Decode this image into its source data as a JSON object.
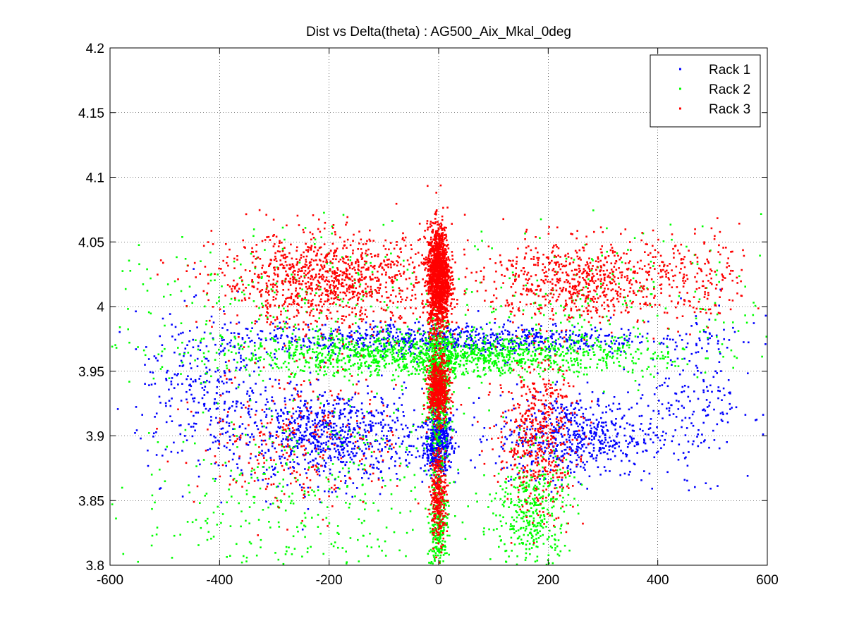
{
  "chart_data": {
    "type": "scatter",
    "title": "Dist vs Delta(theta) : AG500_Aix_Mkal_0deg",
    "xlabel": "",
    "ylabel": "",
    "xlim": [
      -600,
      600
    ],
    "ylim": [
      3.8,
      4.2
    ],
    "x_ticks": [
      -600,
      -400,
      -200,
      0,
      200,
      400,
      600
    ],
    "x_tick_labels": [
      "-600",
      "-400",
      "-200",
      "0",
      "200",
      "400",
      "600"
    ],
    "y_ticks": [
      3.8,
      3.85,
      3.9,
      3.95,
      4.0,
      4.05,
      4.1,
      4.15,
      4.2
    ],
    "y_tick_labels": [
      "3.8",
      "3.85",
      "3.9",
      "3.95",
      "4",
      "4.05",
      "4.1",
      "4.15",
      "4.2"
    ],
    "grid": true,
    "grid_style": "dotted",
    "legend_position": "top-right",
    "series": [
      {
        "name": "Rack 1",
        "color": "#0000ff",
        "marker": "dot",
        "clusters": [
          {
            "x_center": 0,
            "x_spread": 22,
            "y_center": 3.895,
            "y_spread": 0.012,
            "count": 500
          },
          {
            "x_center": -200,
            "x_spread": 140,
            "y_center": 3.9,
            "y_spread": 0.018,
            "count": 800
          },
          {
            "x_center": 250,
            "x_spread": 120,
            "y_center": 3.9,
            "y_spread": 0.016,
            "count": 600
          },
          {
            "x_center": 0,
            "x_spread": 330,
            "y_center": 3.975,
            "y_spread": 0.006,
            "count": 800
          },
          {
            "x_center": -420,
            "x_spread": 110,
            "y_center": 3.93,
            "y_spread": 0.03,
            "count": 300
          },
          {
            "x_center": 470,
            "x_spread": 90,
            "y_center": 3.93,
            "y_spread": 0.03,
            "count": 200
          }
        ]
      },
      {
        "name": "Rack 2",
        "color": "#00ff00",
        "marker": "dot",
        "clusters": [
          {
            "x_center": 0,
            "x_spread": 18,
            "y_center": 3.94,
            "y_spread": 0.025,
            "count": 600
          },
          {
            "x_center": 0,
            "x_spread": 14,
            "y_center": 3.83,
            "y_spread": 0.025,
            "count": 300
          },
          {
            "x_center": 0,
            "x_spread": 330,
            "y_center": 3.962,
            "y_spread": 0.008,
            "count": 1400
          },
          {
            "x_center": 170,
            "x_spread": 55,
            "y_center": 3.84,
            "y_spread": 0.025,
            "count": 400
          },
          {
            "x_center": -250,
            "x_spread": 250,
            "y_center": 3.85,
            "y_spread": 0.04,
            "count": 400
          },
          {
            "x_center": 300,
            "x_spread": 250,
            "y_center": 4.0,
            "y_spread": 0.03,
            "count": 250
          },
          {
            "x_center": -300,
            "x_spread": 250,
            "y_center": 4.0,
            "y_spread": 0.03,
            "count": 250
          }
        ]
      },
      {
        "name": "Rack 3",
        "color": "#ff0000",
        "marker": "dot",
        "clusters": [
          {
            "x_center": 0,
            "x_spread": 17,
            "y_center": 4.022,
            "y_spread": 0.02,
            "count": 1500
          },
          {
            "x_center": 0,
            "x_spread": 16,
            "y_center": 3.935,
            "y_spread": 0.012,
            "count": 600
          },
          {
            "x_center": 0,
            "x_spread": 12,
            "y_center": 3.855,
            "y_spread": 0.018,
            "count": 300
          },
          {
            "x_center": -200,
            "x_spread": 170,
            "y_center": 4.02,
            "y_spread": 0.018,
            "count": 1100
          },
          {
            "x_center": 260,
            "x_spread": 150,
            "y_center": 4.02,
            "y_spread": 0.016,
            "count": 700
          },
          {
            "x_center": 180,
            "x_spread": 60,
            "y_center": 3.9,
            "y_spread": 0.03,
            "count": 500
          },
          {
            "x_center": -250,
            "x_spread": 150,
            "y_center": 3.9,
            "y_spread": 0.03,
            "count": 300
          },
          {
            "x_center": 480,
            "x_spread": 80,
            "y_center": 4.02,
            "y_spread": 0.02,
            "count": 150
          }
        ]
      }
    ]
  }
}
